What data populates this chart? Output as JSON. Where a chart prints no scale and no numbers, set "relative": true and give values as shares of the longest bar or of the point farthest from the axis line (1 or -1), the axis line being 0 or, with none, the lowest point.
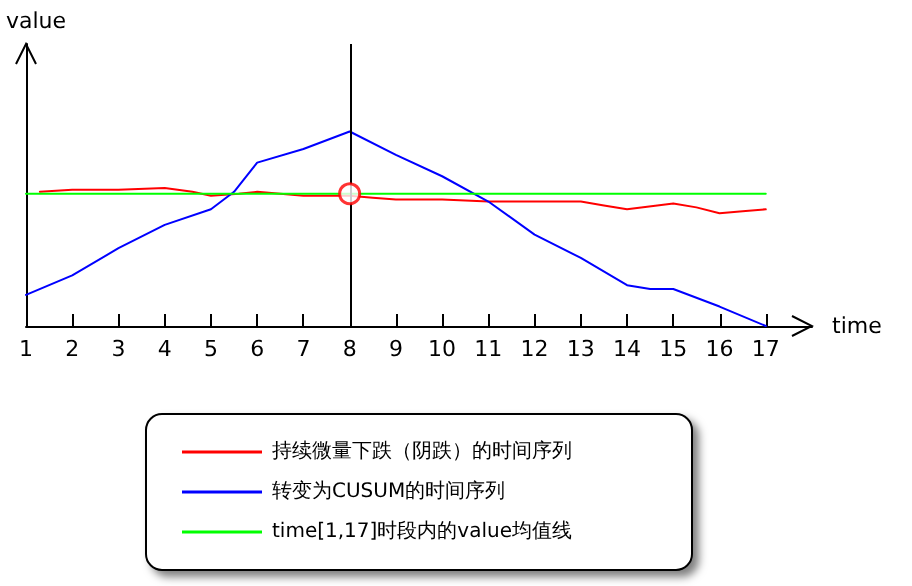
{
  "chart_data": {
    "type": "line",
    "xlabel": "time",
    "ylabel": "value",
    "relative": true,
    "xlim": [
      1,
      18
    ],
    "xticks": [
      1,
      2,
      3,
      4,
      5,
      6,
      7,
      8,
      9,
      10,
      11,
      12,
      13,
      14,
      15,
      16,
      17
    ],
    "series": [
      {
        "name": "持续微量下跌（阴跌）的时间序列",
        "color": "#ff0000",
        "x": [
          1.3,
          2,
          3,
          4,
          4.6,
          5,
          5.6,
          6,
          6.5,
          7,
          8,
          8.5,
          9,
          10,
          11,
          12,
          13,
          13.5,
          14,
          15,
          15.5,
          16,
          16.5,
          17
        ],
        "values": [
          0.69,
          0.7,
          0.7,
          0.71,
          0.69,
          0.67,
          0.68,
          0.69,
          0.68,
          0.67,
          0.67,
          0.66,
          0.65,
          0.65,
          0.64,
          0.64,
          0.64,
          0.62,
          0.6,
          0.63,
          0.61,
          0.58,
          0.59,
          0.6
        ]
      },
      {
        "name": "转变为CUSUM的时间序列",
        "color": "#0000ff",
        "x": [
          1,
          2,
          3,
          4,
          5,
          5.5,
          6,
          7,
          8,
          9,
          10,
          11,
          12,
          13,
          14,
          14.5,
          15,
          16,
          17
        ],
        "values": [
          0.16,
          0.26,
          0.4,
          0.52,
          0.6,
          0.69,
          0.84,
          0.91,
          1.0,
          0.88,
          0.77,
          0.64,
          0.47,
          0.35,
          0.21,
          0.19,
          0.19,
          0.1,
          0
        ]
      },
      {
        "name": "time[1,17]时段内的value均值线",
        "color": "#00ff00",
        "x": [
          1,
          17
        ],
        "values": [
          0.68,
          0.68
        ]
      },
      {
        "type": "scatter",
        "color": "#ff0000",
        "marker": "circle",
        "x": [
          8
        ],
        "values": [
          0.68
        ]
      }
    ],
    "ref_lines": [
      {
        "axis": "x",
        "value": 8,
        "color": "#000000"
      }
    ],
    "legend": "bottom",
    "grid": false,
    "tick_labels": "x",
    "marker": "none",
    "line_style": "solid"
  }
}
